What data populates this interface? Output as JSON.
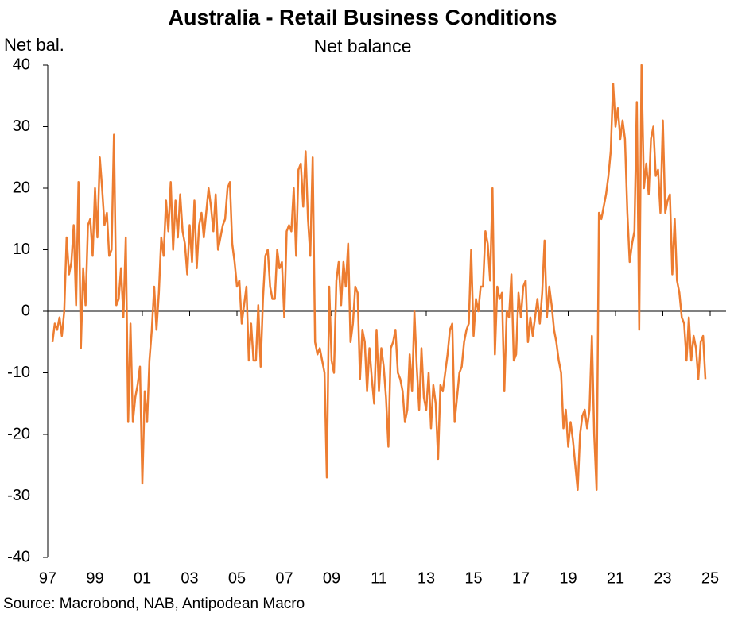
{
  "chart_data": {
    "type": "line",
    "title": "Australia - Retail Business Conditions",
    "subtitle": "Net balance",
    "y_label": "Net bal.",
    "source": "Source: Macrobond, NAB, Antipodean Macro",
    "xlim": [
      1997,
      2025
    ],
    "xticks": [
      {
        "value": 1997,
        "label": "97"
      },
      {
        "value": 1999,
        "label": "99"
      },
      {
        "value": 2001,
        "label": "01"
      },
      {
        "value": 2003,
        "label": "03"
      },
      {
        "value": 2005,
        "label": "05"
      },
      {
        "value": 2007,
        "label": "07"
      },
      {
        "value": 2009,
        "label": "09"
      },
      {
        "value": 2011,
        "label": "11"
      },
      {
        "value": 2013,
        "label": "13"
      },
      {
        "value": 2015,
        "label": "15"
      },
      {
        "value": 2017,
        "label": "17"
      },
      {
        "value": 2019,
        "label": "19"
      },
      {
        "value": 2021,
        "label": "21"
      },
      {
        "value": 2023,
        "label": "23"
      },
      {
        "value": 2025,
        "label": "25"
      }
    ],
    "ylim": [
      -40,
      40
    ],
    "yticks": [
      -40,
      -30,
      -20,
      -10,
      0,
      10,
      20,
      30,
      40
    ],
    "grid": false,
    "x": [
      1997.2,
      1997.3,
      1997.4,
      1997.5,
      1997.6,
      1997.7,
      1997.8,
      1997.9,
      1998.0,
      1998.1,
      1998.2,
      1998.3,
      1998.4,
      1998.5,
      1998.6,
      1998.7,
      1998.8,
      1998.9,
      1999.0,
      1999.1,
      1999.2,
      1999.3,
      1999.4,
      1999.5,
      1999.6,
      1999.7,
      1999.8,
      1999.9,
      2000.0,
      2000.1,
      2000.2,
      2000.3,
      2000.4,
      2000.5,
      2000.6,
      2000.7,
      2000.8,
      2000.9,
      2001.0,
      2001.1,
      2001.2,
      2001.3,
      2001.4,
      2001.5,
      2001.6,
      2001.7,
      2001.8,
      2001.9,
      2002.0,
      2002.1,
      2002.2,
      2002.3,
      2002.4,
      2002.5,
      2002.6,
      2002.7,
      2002.8,
      2002.9,
      2003.0,
      2003.1,
      2003.2,
      2003.3,
      2003.4,
      2003.5,
      2003.6,
      2003.8,
      2003.9,
      2004.0,
      2004.1,
      2004.2,
      2004.3,
      2004.4,
      2004.5,
      2004.6,
      2004.7,
      2004.8,
      2004.9,
      2005.0,
      2005.1,
      2005.2,
      2005.3,
      2005.4,
      2005.5,
      2005.6,
      2005.7,
      2005.8,
      2005.9,
      2006.0,
      2006.1,
      2006.2,
      2006.3,
      2006.4,
      2006.5,
      2006.6,
      2006.7,
      2006.8,
      2006.9,
      2007.0,
      2007.1,
      2007.2,
      2007.3,
      2007.4,
      2007.5,
      2007.6,
      2007.7,
      2007.8,
      2007.9,
      2008.0,
      2008.1,
      2008.2,
      2008.3,
      2008.4,
      2008.5,
      2008.6,
      2008.7,
      2008.8,
      2008.9,
      2009.0,
      2009.1,
      2009.2,
      2009.3,
      2009.4,
      2009.5,
      2009.6,
      2009.7,
      2009.8,
      2009.9,
      2010.0,
      2010.1,
      2010.2,
      2010.3,
      2010.4,
      2010.5,
      2010.6,
      2010.7,
      2010.8,
      2010.9,
      2011.0,
      2011.1,
      2011.2,
      2011.3,
      2011.4,
      2011.5,
      2011.6,
      2011.7,
      2011.8,
      2011.9,
      2012.0,
      2012.1,
      2012.2,
      2012.3,
      2012.4,
      2012.5,
      2012.6,
      2012.7,
      2012.8,
      2012.9,
      2013.0,
      2013.1,
      2013.2,
      2013.3,
      2013.4,
      2013.5,
      2013.6,
      2013.7,
      2013.8,
      2013.9,
      2014.0,
      2014.1,
      2014.2,
      2014.3,
      2014.4,
      2014.5,
      2014.6,
      2014.7,
      2014.8,
      2014.9,
      2015.0,
      2015.1,
      2015.2,
      2015.3,
      2015.4,
      2015.5,
      2015.6,
      2015.7,
      2015.8,
      2015.9,
      2016.0,
      2016.1,
      2016.2,
      2016.3,
      2016.4,
      2016.5,
      2016.6,
      2016.7,
      2016.8,
      2016.9,
      2017.0,
      2017.1,
      2017.2,
      2017.3,
      2017.4,
      2017.5,
      2017.6,
      2017.7,
      2017.8,
      2017.9,
      2018.0,
      2018.1,
      2018.2,
      2018.3,
      2018.4,
      2018.5,
      2018.6,
      2018.7,
      2018.8,
      2018.9,
      2019.0,
      2019.1,
      2019.2,
      2019.3,
      2019.4,
      2019.5,
      2019.6,
      2019.7,
      2019.8,
      2019.9,
      2020.0,
      2020.1,
      2020.2,
      2020.3,
      2020.4,
      2020.5,
      2020.6,
      2020.7,
      2020.8,
      2020.9,
      2021.0,
      2021.1,
      2021.2,
      2021.3,
      2021.4,
      2021.5,
      2021.6,
      2021.7,
      2021.8,
      2021.9,
      2022.0,
      2022.1,
      2022.2,
      2022.3,
      2022.4,
      2022.5,
      2022.6,
      2022.7,
      2022.8,
      2022.9,
      2023.0,
      2023.1,
      2023.2,
      2023.3,
      2023.4,
      2023.5,
      2023.6,
      2023.7,
      2023.8,
      2023.9,
      2024.0,
      2024.1,
      2024.2,
      2024.3,
      2024.4,
      2024.5,
      2024.6,
      2024.7,
      2024.8
    ],
    "series": [
      {
        "name": "Retail Business Conditions",
        "color": "#ed7d31",
        "values": [
          -5,
          -2,
          -3,
          -1,
          -4,
          0,
          12,
          6,
          8,
          14,
          1,
          21,
          -6,
          7,
          1,
          14,
          15,
          9,
          20,
          12,
          25,
          20,
          14,
          16,
          9,
          10,
          28.7,
          1,
          2,
          7,
          -1,
          12,
          -18,
          -2,
          -18,
          -14,
          -12,
          -9,
          -28,
          -13,
          -18,
          -8,
          -3,
          4,
          -3,
          3,
          12,
          9,
          18,
          13,
          21,
          10,
          18,
          12,
          19,
          13,
          11,
          6,
          14,
          8,
          18,
          7,
          14,
          16,
          12,
          20,
          17,
          13,
          19,
          10,
          12,
          14,
          15,
          20,
          21,
          11,
          8,
          4,
          5,
          -2,
          1,
          4,
          -8,
          -2,
          -8,
          -8,
          1,
          -9,
          2,
          9,
          10,
          4,
          2,
          2,
          10,
          7,
          8,
          -1,
          13,
          14,
          13,
          20,
          9,
          23,
          24,
          17,
          26,
          15,
          9,
          25,
          -5,
          -7,
          -6,
          -8,
          -10,
          -27,
          4,
          -8,
          -10,
          5,
          8,
          1,
          8,
          4,
          11,
          -5,
          -2,
          4,
          3,
          -11,
          -3,
          -5,
          -13,
          -6,
          -11,
          -15,
          -3,
          -13,
          -6,
          -9,
          -14,
          -22,
          -6,
          -5,
          -3,
          -10,
          -11,
          -13,
          -18,
          -16,
          -7,
          -13,
          0,
          -9,
          -16,
          -6,
          -14,
          -16,
          -10,
          -19,
          -12,
          -15,
          -24,
          -12,
          -13,
          -10,
          -7,
          -3,
          -2,
          -18,
          -14,
          -10,
          -9,
          -5,
          -3,
          -2,
          10,
          -4,
          2,
          0,
          4,
          4,
          13,
          11,
          5,
          20,
          -7,
          4,
          2,
          3,
          -13,
          0,
          -1,
          6,
          -8,
          -7,
          3,
          -1,
          4,
          5,
          -5,
          -1,
          -4,
          -1,
          2,
          -2,
          3,
          11.5,
          -1,
          4,
          1,
          -3,
          -5,
          -8,
          -10,
          -19,
          -16,
          -22,
          -18,
          -21,
          -25,
          -29,
          -20,
          -17,
          -16,
          -19,
          -16,
          -4,
          -20,
          -29,
          16,
          15,
          17,
          19,
          22,
          26,
          37,
          30,
          33,
          28,
          31,
          28,
          16,
          8,
          11,
          13,
          34,
          -3,
          40,
          20,
          24,
          19,
          28,
          30,
          22,
          23,
          16,
          31,
          16,
          18,
          19,
          6,
          15,
          5,
          3,
          -1,
          -2,
          -8,
          -1,
          -8,
          -4,
          -6,
          -11,
          -5,
          -4,
          -11
        ]
      }
    ]
  }
}
